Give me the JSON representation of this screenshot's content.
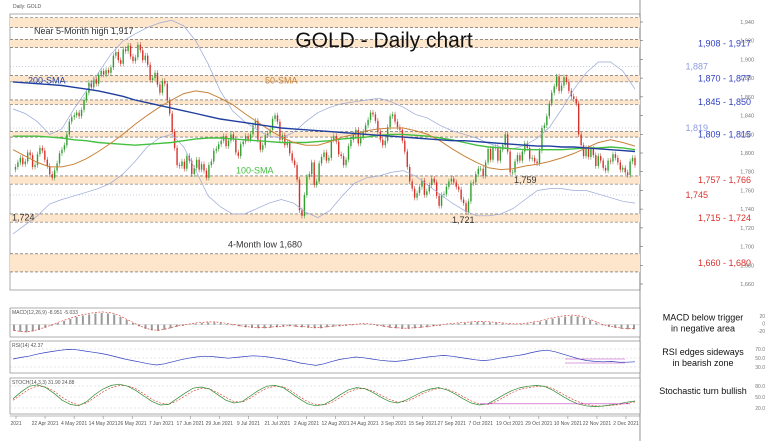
{
  "header": {
    "ticker": "Daily: GOLD"
  },
  "chart_data": {
    "type": "line",
    "title": "GOLD - Daily chart",
    "ylim": [
      1640,
      1945
    ],
    "right_ticks": [
      "1,940",
      "1,920",
      "1,900",
      "1,880",
      "1,860",
      "1,840",
      "1,820",
      "1,800",
      "1,780",
      "1,760",
      "1,740",
      "1,720",
      "1,700",
      "1,680",
      "1,660"
    ],
    "zones": [
      {
        "low": 1930,
        "high": 1941
      },
      {
        "low": 1908,
        "high": 1917,
        "label": "1,908 - 1,917",
        "color": "#2f3fbf"
      },
      {
        "low": 1870,
        "high": 1877,
        "label": "1,870 - 1,877",
        "color": "#2f3fbf"
      },
      {
        "low": 1845,
        "high": 1850,
        "label": "1,845 - 1,850",
        "color": "#2f3fbf"
      },
      {
        "low": 1809,
        "high": 1815,
        "label": "1,809 - 1,815",
        "color": "#2f3fbf"
      },
      {
        "low": 1757,
        "high": 1766,
        "label": "1,757 - 1,766",
        "color": "#d9302a"
      },
      {
        "low": 1715,
        "high": 1724,
        "label": "1,715 - 1,724",
        "color": "#d9302a"
      },
      {
        "low": 1660,
        "high": 1680,
        "label": "1,660 - 1,680",
        "color": "#d9302a"
      }
    ],
    "levels": [
      {
        "value": 1887,
        "label": "1,887",
        "color": "#8e9be0"
      },
      {
        "value": 1819,
        "label": "1,819",
        "color": "#8e9be0"
      },
      {
        "value": 1745,
        "label": "1,745",
        "color": "#d9302a"
      }
    ],
    "annotations": [
      {
        "text": "Near 5-Month high 1,917",
        "x": 34,
        "y": 1923,
        "color": "#333333"
      },
      {
        "text": "200-SMA",
        "x": 28,
        "y": 1868,
        "color": "#1f3f9f"
      },
      {
        "text": "50-SMA",
        "x": 265,
        "y": 1868,
        "color": "#c8823a"
      },
      {
        "text": "100-SMA",
        "x": 236,
        "y": 1769,
        "color": "#44c040"
      },
      {
        "text": "1,724",
        "x": 12,
        "y": 1717,
        "color": "#333333"
      },
      {
        "text": "4-Month low 1,680",
        "x": 228,
        "y": 1687,
        "color": "#333333"
      },
      {
        "text": "1,759",
        "x": 514,
        "y": 1758,
        "color": "#333333"
      },
      {
        "text": "1,721",
        "x": 452,
        "y": 1714,
        "color": "#333333"
      }
    ],
    "close": [
      1773,
      1776,
      1781,
      1786,
      1779,
      1782,
      1792,
      1789,
      1776,
      1778,
      1790,
      1797,
      1794,
      1784,
      1777,
      1768,
      1764,
      1772,
      1780,
      1791,
      1795,
      1800,
      1812,
      1826,
      1831,
      1833,
      1836,
      1832,
      1839,
      1850,
      1858,
      1869,
      1864,
      1873,
      1868,
      1878,
      1882,
      1878,
      1883,
      1880,
      1886,
      1899,
      1903,
      1894,
      1890,
      1906,
      1904,
      1910,
      1898,
      1893,
      1897,
      1911,
      1905,
      1894,
      1899,
      1889,
      1872,
      1874,
      1880,
      1867,
      1858,
      1871,
      1868,
      1850,
      1835,
      1815,
      1797,
      1778,
      1777,
      1782,
      1774,
      1788,
      1783,
      1768,
      1775,
      1784,
      1773,
      1779,
      1772,
      1764,
      1778,
      1782,
      1794,
      1796,
      1801,
      1805,
      1810,
      1799,
      1805,
      1812,
      1807,
      1792,
      1788,
      1801,
      1804,
      1810,
      1806,
      1812,
      1822,
      1827,
      1806,
      1795,
      1800,
      1811,
      1813,
      1817,
      1829,
      1833,
      1826,
      1806,
      1811,
      1800,
      1803,
      1791,
      1783,
      1778,
      1762,
      1728,
      1722,
      1745,
      1765,
      1768,
      1781,
      1756,
      1760,
      1780,
      1787,
      1792,
      1783,
      1786,
      1806,
      1810,
      1804,
      1790,
      1788,
      1778,
      1784,
      1799,
      1806,
      1812,
      1817,
      1802,
      1809,
      1815,
      1822,
      1828,
      1836,
      1834,
      1827,
      1815,
      1806,
      1800,
      1805,
      1820,
      1832,
      1834,
      1826,
      1820,
      1817,
      1805,
      1793,
      1776,
      1760,
      1752,
      1742,
      1747,
      1754,
      1761,
      1745,
      1749,
      1756,
      1763,
      1759,
      1744,
      1733,
      1745,
      1746,
      1754,
      1760,
      1763,
      1759,
      1754,
      1751,
      1740,
      1736,
      1726,
      1738,
      1758,
      1759,
      1768,
      1774,
      1774,
      1766,
      1781,
      1796,
      1784,
      1797,
      1798,
      1783,
      1795,
      1800,
      1812,
      1793,
      1770,
      1770,
      1782,
      1789,
      1783,
      1793,
      1802,
      1797,
      1785,
      1786,
      1782,
      1780,
      1794,
      1819,
      1822,
      1832,
      1846,
      1858,
      1865,
      1876,
      1860,
      1866,
      1875,
      1870,
      1860,
      1854,
      1851,
      1846,
      1812,
      1800,
      1788,
      1797,
      1787,
      1796,
      1789,
      1777,
      1788,
      1783,
      1775,
      1772,
      1783,
      1782,
      1790,
      1786,
      1781,
      1773,
      1775,
      1770,
      1767,
      1782,
      1786,
      1778
    ],
    "sma_200": [
      1870,
      1869,
      1868,
      1867,
      1866,
      1864,
      1862,
      1860,
      1857,
      1854,
      1850,
      1847,
      1844,
      1841,
      1838,
      1835,
      1832,
      1829,
      1827,
      1825,
      1823,
      1821,
      1819,
      1818,
      1817,
      1816,
      1815,
      1814,
      1813,
      1812,
      1811,
      1810,
      1809,
      1808,
      1807,
      1806,
      1805,
      1805,
      1804,
      1803,
      1802,
      1801,
      1800,
      1799,
      1799,
      1798,
      1798,
      1797,
      1796,
      1795,
      1794,
      1793
    ],
    "sma_50": [
      1795,
      1788,
      1781,
      1776,
      1776,
      1779,
      1785,
      1793,
      1802,
      1812,
      1823,
      1833,
      1842,
      1850,
      1857,
      1860,
      1858,
      1852,
      1845,
      1835,
      1826,
      1817,
      1809,
      1803,
      1800,
      1800,
      1804,
      1809,
      1812,
      1816,
      1818,
      1819,
      1819,
      1816,
      1812,
      1805,
      1796,
      1788,
      1781,
      1775,
      1773,
      1774,
      1777,
      1779,
      1782,
      1786,
      1791,
      1797,
      1803,
      1806,
      1803,
      1799
    ],
    "sma_100": [
      1810,
      1810,
      1810,
      1809,
      1808,
      1806,
      1805,
      1803,
      1802,
      1801,
      1800,
      1801,
      1802,
      1803,
      1805,
      1807,
      1808,
      1808,
      1807,
      1806,
      1805,
      1804,
      1803,
      1803,
      1803,
      1804,
      1805,
      1807,
      1808,
      1809,
      1811,
      1812,
      1812,
      1811,
      1810,
      1808,
      1806,
      1803,
      1800,
      1798,
      1797,
      1796,
      1795,
      1795,
      1795,
      1795,
      1796,
      1797,
      1797,
      1798,
      1797,
      1795
    ],
    "bb_upper": [
      1840,
      1835,
      1826,
      1812,
      1818,
      1840,
      1860,
      1880,
      1900,
      1915,
      1923,
      1930,
      1935,
      1938,
      1932,
      1915,
      1890,
      1860,
      1838,
      1826,
      1817,
      1810,
      1808,
      1814,
      1826,
      1836,
      1842,
      1846,
      1848,
      1850,
      1852,
      1848,
      1842,
      1834,
      1830,
      1822,
      1816,
      1812,
      1808,
      1802,
      1798,
      1796,
      1800,
      1808,
      1820,
      1840,
      1862,
      1880,
      1892,
      1892,
      1882,
      1862
    ],
    "bb_lower": [
      1702,
      1712,
      1722,
      1735,
      1740,
      1744,
      1748,
      1752,
      1758,
      1768,
      1782,
      1798,
      1808,
      1812,
      1798,
      1772,
      1744,
      1732,
      1724,
      1724,
      1730,
      1736,
      1740,
      1736,
      1726,
      1720,
      1728,
      1744,
      1758,
      1764,
      1766,
      1770,
      1772,
      1766,
      1756,
      1746,
      1736,
      1728,
      1722,
      1722,
      1724,
      1730,
      1740,
      1750,
      1752,
      1752,
      1750,
      1750,
      1746,
      1742,
      1738,
      1736
    ],
    "x_labels": [
      "2021",
      "22 Apr 2021",
      "4 May 2021",
      "14 May 2021",
      "26 May 2021",
      "7 Jun 2021",
      "17 Jun 2021",
      "29 Jun 2021",
      "9 Jul 2021",
      "21 Jul 2021",
      "2 Aug 2021",
      "12 Aug 2021",
      "24 Aug 2021",
      "3 Sep 2021",
      "15 Sep 2021",
      "27 Sep 2021",
      "7 Oct 2021",
      "19 Oct 2021",
      "29 Oct 2021",
      "10 Nov 2021",
      "22 Nov 2021",
      "2 Dec 2021"
    ],
    "macd": {
      "label": "MACD(12,26,9) -8.951 -5.033",
      "note": "MACD below trigger in negative area",
      "right_ticks": [
        "20",
        "0",
        "-20"
      ],
      "hist": [
        -12,
        -14,
        -15,
        -13,
        -10,
        -6,
        -2,
        3,
        7,
        11,
        15,
        18,
        20,
        22,
        23,
        22,
        20,
        15,
        9,
        3,
        -3,
        -8,
        -11,
        -12,
        -10,
        -7,
        -4,
        -2,
        0,
        2,
        3,
        4,
        4,
        3,
        1,
        -1,
        -3,
        -5,
        -6,
        -7,
        -7,
        -6,
        -5,
        -4,
        -3,
        -4,
        -5,
        -6,
        -7,
        -7,
        -5,
        -4,
        -3,
        -2,
        -1,
        0,
        1,
        0,
        -2,
        -4,
        -6,
        -7,
        -8,
        -8,
        -7,
        -6,
        -5,
        -3,
        -2,
        0,
        1,
        2,
        3,
        4,
        5,
        5,
        4,
        3,
        2,
        1,
        0,
        1,
        2,
        4,
        6,
        9,
        12,
        14,
        16,
        17,
        16,
        13,
        9,
        4,
        -1,
        -4,
        -6,
        -8,
        -9,
        -9
      ]
    },
    "rsi": {
      "label": "RSI(14) 42.37",
      "note": "RSI edges sideways in bearish zone",
      "right_ticks": [
        "70.0",
        "50.0",
        "30.0"
      ],
      "values": [
        50,
        54,
        57,
        62,
        66,
        69,
        72,
        74,
        73,
        70,
        67,
        64,
        60,
        55,
        50,
        46,
        42,
        38,
        35,
        38,
        43,
        48,
        52,
        55,
        57,
        56,
        54,
        52,
        54,
        56,
        58,
        57,
        55,
        52,
        49,
        45,
        40,
        37,
        34,
        38,
        44,
        49,
        52,
        55,
        53,
        50,
        47,
        45,
        44,
        46,
        49,
        52,
        55,
        57,
        59,
        57,
        54,
        51,
        48,
        46,
        48,
        52,
        55,
        58,
        61,
        66,
        70,
        72,
        68,
        62,
        56,
        50,
        46,
        44,
        43,
        44,
        42,
        42,
        43
      ]
    },
    "stoch": {
      "label": "STOCH(14,3,3) 31.90 24.88",
      "note": "Stochastic turn bullish",
      "right_ticks": [
        "80.0",
        "50.0",
        "20.0"
      ],
      "k": [
        40,
        65,
        85,
        90,
        80,
        60,
        35,
        20,
        15,
        30,
        55,
        75,
        88,
        92,
        85,
        70,
        50,
        30,
        18,
        20,
        40,
        60,
        78,
        82,
        75,
        55,
        35,
        25,
        30,
        50,
        70,
        85,
        88,
        80,
        60,
        40,
        22,
        15,
        20,
        35,
        55,
        72,
        80,
        76,
        62,
        45,
        30,
        25,
        35,
        50,
        65,
        75,
        80,
        72,
        58,
        40,
        25,
        18,
        22,
        38,
        55,
        70,
        80,
        85,
        88,
        84,
        70,
        52,
        35,
        22,
        15,
        12,
        14,
        18,
        22,
        28,
        32
      ],
      "d": [
        35,
        55,
        75,
        86,
        82,
        68,
        45,
        28,
        18,
        25,
        45,
        65,
        80,
        88,
        86,
        76,
        58,
        38,
        25,
        20,
        32,
        50,
        68,
        78,
        76,
        62,
        45,
        30,
        28,
        42,
        62,
        78,
        85,
        83,
        68,
        48,
        30,
        20,
        18,
        28,
        45,
        64,
        75,
        77,
        68,
        52,
        38,
        28,
        30,
        42,
        58,
        70,
        77,
        75,
        64,
        48,
        32,
        22,
        20,
        30,
        46,
        62,
        74,
        80,
        84,
        85,
        76,
        60,
        44,
        30,
        20,
        15,
        14,
        16,
        19,
        24,
        29
      ]
    }
  }
}
